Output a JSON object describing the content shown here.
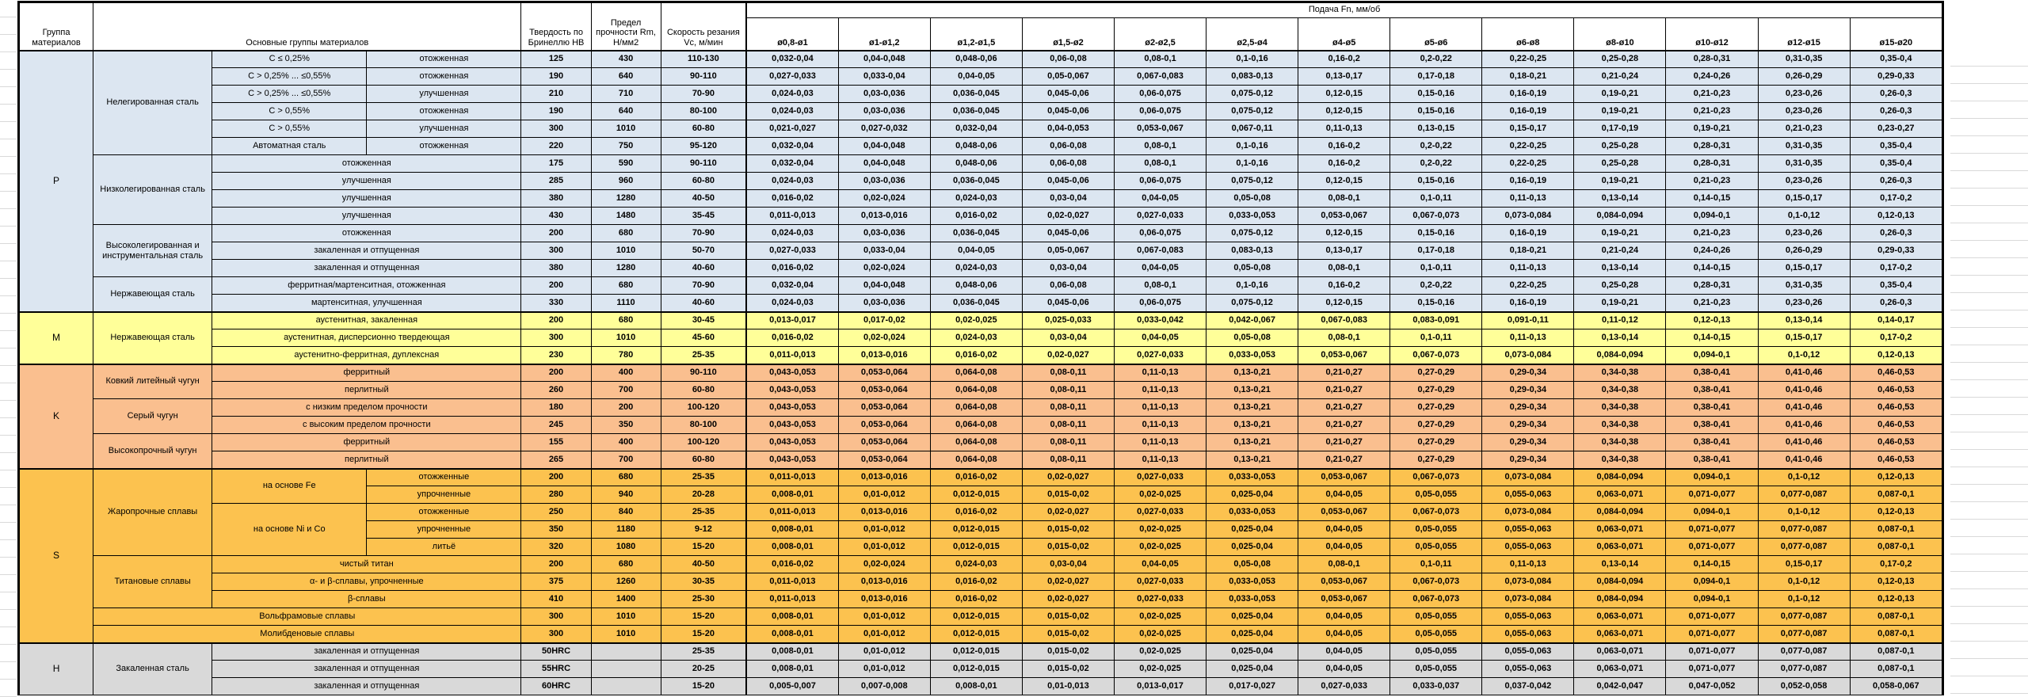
{
  "header": {
    "group": "Группа материалов",
    "materials": "Основные группы материалов",
    "hardness": "Твердость по Бринеллю HB",
    "strength": "Предел прочности Rm, Н/мм2",
    "speed": "Скорость резания Vc, м/мин",
    "feed": "Подача Fn, мм/об",
    "feed_cols": [
      "ø0,8-ø1",
      "ø1-ø1,2",
      "ø1,2-ø1,5",
      "ø1,5-ø2",
      "ø2-ø2,5",
      "ø2,5-ø4",
      "ø4-ø5",
      "ø5-ø6",
      "ø6-ø8",
      "ø8-ø10",
      "ø10-ø12",
      "ø12-ø15",
      "ø15-ø20"
    ]
  },
  "feed_chains": {
    "A": [
      "0,032-0,04",
      "0,04-0,048",
      "0,048-0,06",
      "0,06-0,08",
      "0,08-0,1",
      "0,1-0,16",
      "0,16-0,2",
      "0,2-0,22",
      "0,22-0,25",
      "0,25-0,28",
      "0,28-0,31",
      "0,31-0,35",
      "0,35-0,4"
    ],
    "B": [
      "0,027-0,033",
      "0,033-0,04",
      "0,04-0,05",
      "0,05-0,067",
      "0,067-0,083",
      "0,083-0,13",
      "0,13-0,17",
      "0,17-0,18",
      "0,18-0,21",
      "0,21-0,24",
      "0,24-0,26",
      "0,26-0,29",
      "0,29-0,33"
    ],
    "C": [
      "0,024-0,03",
      "0,03-0,036",
      "0,036-0,045",
      "0,045-0,06",
      "0,06-0,075",
      "0,075-0,12",
      "0,12-0,15",
      "0,15-0,16",
      "0,16-0,19",
      "0,19-0,21",
      "0,21-0,23",
      "0,23-0,26",
      "0,26-0,3"
    ],
    "D": [
      "0,021-0,027",
      "0,027-0,032",
      "0,032-0,04",
      "0,04-0,053",
      "0,053-0,067",
      "0,067-0,11",
      "0,11-0,13",
      "0,13-0,15",
      "0,15-0,17",
      "0,17-0,19",
      "0,19-0,21",
      "0,21-0,23",
      "0,23-0,27"
    ],
    "E": [
      "0,016-0,02",
      "0,02-0,024",
      "0,024-0,03",
      "0,03-0,04",
      "0,04-0,05",
      "0,05-0,08",
      "0,08-0,1",
      "0,1-0,11",
      "0,11-0,13",
      "0,13-0,14",
      "0,14-0,15",
      "0,15-0,17",
      "0,17-0,2"
    ],
    "F": [
      "0,011-0,013",
      "0,013-0,016",
      "0,016-0,02",
      "0,02-0,027",
      "0,027-0,033",
      "0,033-0,053",
      "0,053-0,067",
      "0,067-0,073",
      "0,073-0,084",
      "0,084-0,094",
      "0,094-0,1",
      "0,1-0,12",
      "0,12-0,13"
    ],
    "G": [
      "0,013-0,017",
      "0,017-0,02",
      "0,02-0,025",
      "0,025-0,033",
      "0,033-0,042",
      "0,042-0,067",
      "0,067-0,083",
      "0,083-0,091",
      "0,091-0,11",
      "0,11-0,12",
      "0,12-0,13",
      "0,13-0,14",
      "0,14-0,17"
    ],
    "K": [
      "0,043-0,053",
      "0,053-0,064",
      "0,064-0,08",
      "0,08-0,11",
      "0,11-0,13",
      "0,13-0,21",
      "0,21-0,27",
      "0,27-0,29",
      "0,29-0,34",
      "0,34-0,38",
      "0,38-0,41",
      "0,41-0,46",
      "0,46-0,53"
    ],
    "S": [
      "0,008-0,01",
      "0,01-0,012",
      "0,012-0,015",
      "0,015-0,02",
      "0,02-0,025",
      "0,025-0,04",
      "0,04-0,05",
      "0,05-0,055",
      "0,055-0,063",
      "0,063-0,071",
      "0,071-0,077",
      "0,077-0,087",
      "0,087-0,1"
    ],
    "H": [
      "0,005-0,007",
      "0,007-0,008",
      "0,008-0,01",
      "0,01-0,013",
      "0,013-0,017",
      "0,017-0,027",
      "0,027-0,033",
      "0,033-0,037",
      "0,037-0,042",
      "0,042-0,047",
      "0,047-0,052",
      "0,052-0,058",
      "0,058-0,067"
    ]
  },
  "groups": [
    {
      "letter": "P",
      "fill": "#DCE6F1",
      "rows": [
        {
          "cells": [
            {
              "t": "Нелегированная сталь",
              "rs": 6
            },
            {
              "t": "C ≤ 0,25%"
            },
            {
              "t": "отожженная"
            }
          ],
          "hb": "125",
          "rm": "430",
          "vc": "110-130",
          "feed": "A"
        },
        {
          "cells": [
            {
              "t": "C > 0,25% ... ≤0,55%"
            },
            {
              "t": "отожженная"
            }
          ],
          "hb": "190",
          "rm": "640",
          "vc": "90-110",
          "feed": "B"
        },
        {
          "cells": [
            {
              "t": "C > 0,25% ... ≤0,55%"
            },
            {
              "t": "улучшенная"
            }
          ],
          "hb": "210",
          "rm": "710",
          "vc": "70-90",
          "feed": "C"
        },
        {
          "cells": [
            {
              "t": "C > 0,55%"
            },
            {
              "t": "отожженная"
            }
          ],
          "hb": "190",
          "rm": "640",
          "vc": "80-100",
          "feed": "C"
        },
        {
          "cells": [
            {
              "t": "C > 0,55%"
            },
            {
              "t": "улучшенная"
            }
          ],
          "hb": "300",
          "rm": "1010",
          "vc": "60-80",
          "feed": "D"
        },
        {
          "cells": [
            {
              "t": "Автоматная сталь"
            },
            {
              "t": "отожженная"
            }
          ],
          "hb": "220",
          "rm": "750",
          "vc": "95-120",
          "feed": "A"
        },
        {
          "cells": [
            {
              "t": "Низколегированная сталь",
              "rs": 4
            },
            {
              "t": "отожженная",
              "cs": 2
            }
          ],
          "hb": "175",
          "rm": "590",
          "vc": "90-110",
          "feed": "A"
        },
        {
          "cells": [
            {
              "t": "улучшенная",
              "cs": 2
            }
          ],
          "hb": "285",
          "rm": "960",
          "vc": "60-80",
          "feed": "C"
        },
        {
          "cells": [
            {
              "t": "улучшенная",
              "cs": 2
            }
          ],
          "hb": "380",
          "rm": "1280",
          "vc": "40-50",
          "feed": "E"
        },
        {
          "cells": [
            {
              "t": "улучшенная",
              "cs": 2
            }
          ],
          "hb": "430",
          "rm": "1480",
          "vc": "35-45",
          "feed": "F"
        },
        {
          "cells": [
            {
              "t": "Высоколегированная и инструментальная сталь",
              "rs": 3
            },
            {
              "t": "отожженная",
              "cs": 2
            }
          ],
          "hb": "200",
          "rm": "680",
          "vc": "70-90",
          "feed": "C"
        },
        {
          "cells": [
            {
              "t": "закаленная и отпущенная",
              "cs": 2
            }
          ],
          "hb": "300",
          "rm": "1010",
          "vc": "50-70",
          "feed": "B"
        },
        {
          "cells": [
            {
              "t": "закаленная и отпущенная",
              "cs": 2
            }
          ],
          "hb": "380",
          "rm": "1280",
          "vc": "40-60",
          "feed": "E"
        },
        {
          "cells": [
            {
              "t": "Нержавеющая сталь",
              "rs": 2
            },
            {
              "t": "ферритная/мартенситная, отожженная",
              "cs": 2
            }
          ],
          "hb": "200",
          "rm": "680",
          "vc": "70-90",
          "feed": "A"
        },
        {
          "cells": [
            {
              "t": "мартенситная, улучшенная",
              "cs": 2
            }
          ],
          "hb": "330",
          "rm": "1110",
          "vc": "40-60",
          "feed": "C"
        }
      ]
    },
    {
      "letter": "M",
      "fill": "#FFFF99",
      "rows": [
        {
          "cells": [
            {
              "t": "Нержавеющая сталь",
              "rs": 3
            },
            {
              "t": "аустенитная, закаленная",
              "cs": 2
            }
          ],
          "hb": "200",
          "rm": "680",
          "vc": "30-45",
          "feed": "G"
        },
        {
          "cells": [
            {
              "t": "аустенитная, дисперсионно твердеющая",
              "cs": 2
            }
          ],
          "hb": "300",
          "rm": "1010",
          "vc": "45-60",
          "feed": "E"
        },
        {
          "cells": [
            {
              "t": "аустенитно-ферритная, дуплексная",
              "cs": 2
            }
          ],
          "hb": "230",
          "rm": "780",
          "vc": "25-35",
          "feed": "F"
        }
      ]
    },
    {
      "letter": "K",
      "fill": "#FABF8F",
      "rows": [
        {
          "cells": [
            {
              "t": "Ковкий литейный чугун",
              "rs": 2
            },
            {
              "t": "ферритный",
              "cs": 2
            }
          ],
          "hb": "200",
          "rm": "400",
          "vc": "90-110",
          "feed": "K"
        },
        {
          "cells": [
            {
              "t": "перлитный",
              "cs": 2
            }
          ],
          "hb": "260",
          "rm": "700",
          "vc": "60-80",
          "feed": "K"
        },
        {
          "cells": [
            {
              "t": "Серый чугун",
              "rs": 2
            },
            {
              "t": "с низким пределом прочности",
              "cs": 2
            }
          ],
          "hb": "180",
          "rm": "200",
          "vc": "100-120",
          "feed": "K"
        },
        {
          "cells": [
            {
              "t": "с высоким пределом прочности",
              "cs": 2
            }
          ],
          "hb": "245",
          "rm": "350",
          "vc": "80-100",
          "feed": "K"
        },
        {
          "cells": [
            {
              "t": "Высокопрочный чугун",
              "rs": 2
            },
            {
              "t": "ферритный",
              "cs": 2
            }
          ],
          "hb": "155",
          "rm": "400",
          "vc": "100-120",
          "feed": "K"
        },
        {
          "cells": [
            {
              "t": "перлитный",
              "cs": 2
            }
          ],
          "hb": "265",
          "rm": "700",
          "vc": "60-80",
          "feed": "K"
        }
      ]
    },
    {
      "letter": "S",
      "fill": "#FCC24F",
      "rows": [
        {
          "cells": [
            {
              "t": "Жаропрочные сплавы",
              "rs": 5
            },
            {
              "t": "на основе Fe",
              "rs": 2
            },
            {
              "t": "отожженные"
            }
          ],
          "hb": "200",
          "rm": "680",
          "vc": "25-35",
          "feed": "F"
        },
        {
          "cells": [
            {
              "t": "упрочненные"
            }
          ],
          "hb": "280",
          "rm": "940",
          "vc": "20-28",
          "feed": "S"
        },
        {
          "cells": [
            {
              "t": "на основе Ni и Co",
              "rs": 3
            },
            {
              "t": "отожженные"
            }
          ],
          "hb": "250",
          "rm": "840",
          "vc": "25-35",
          "feed": "F"
        },
        {
          "cells": [
            {
              "t": "упрочненные"
            }
          ],
          "hb": "350",
          "rm": "1180",
          "vc": "9-12",
          "feed": "S"
        },
        {
          "cells": [
            {
              "t": "литьё"
            }
          ],
          "hb": "320",
          "rm": "1080",
          "vc": "15-20",
          "feed": "S"
        },
        {
          "cells": [
            {
              "t": "Титановые сплавы",
              "rs": 3
            },
            {
              "t": "чистый титан",
              "cs": 2
            }
          ],
          "hb": "200",
          "rm": "680",
          "vc": "40-50",
          "feed": "E"
        },
        {
          "cells": [
            {
              "t": "α- и β-сплавы, упрочненные",
              "cs": 2
            }
          ],
          "hb": "375",
          "rm": "1260",
          "vc": "30-35",
          "feed": "F"
        },
        {
          "cells": [
            {
              "t": "β-сплавы",
              "cs": 2
            }
          ],
          "hb": "410",
          "rm": "1400",
          "vc": "25-30",
          "feed": "F"
        },
        {
          "cells": [
            {
              "t": "Вольфрамовые сплавы",
              "cs": 3
            }
          ],
          "hb": "300",
          "rm": "1010",
          "vc": "15-20",
          "feed": "S"
        },
        {
          "cells": [
            {
              "t": "Молибденовые сплавы",
              "cs": 3
            }
          ],
          "hb": "300",
          "rm": "1010",
          "vc": "15-20",
          "feed": "S"
        }
      ]
    },
    {
      "letter": "H",
      "fill": "#D9D9D9",
      "rows": [
        {
          "cells": [
            {
              "t": "Закаленная сталь",
              "rs": 3
            },
            {
              "t": "закаленная и отпущенная",
              "cs": 2
            }
          ],
          "hb": "50HRC",
          "rm": "",
          "vc": "25-35",
          "feed": "S"
        },
        {
          "cells": [
            {
              "t": "закаленная и отпущенная",
              "cs": 2
            }
          ],
          "hb": "55HRC",
          "rm": "",
          "vc": "20-25",
          "feed": "S"
        },
        {
          "cells": [
            {
              "t": "закаленная и отпущенная",
              "cs": 2
            }
          ],
          "hb": "60HRC",
          "rm": "",
          "vc": "15-20",
          "feed": "H"
        }
      ]
    }
  ]
}
